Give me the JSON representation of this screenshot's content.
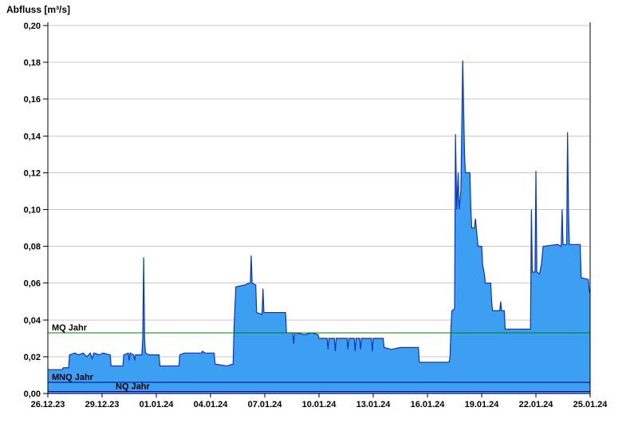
{
  "chart_data": {
    "type": "area",
    "title": "Abfluss [m³/s]",
    "ylabel": "Abfluss [m³/s]",
    "xlabel": "",
    "x_axis_start_date": "26.12.23",
    "xlim": [
      0,
      30
    ],
    "ylim": [
      0,
      0.202
    ],
    "grid": "horizontal",
    "legend": "none",
    "x_tick_days": [
      0,
      3,
      6,
      9,
      12,
      15,
      18,
      21,
      24,
      27,
      30
    ],
    "x_tick_labels": [
      "26.12.23",
      "29.12.23",
      "01.01.24",
      "04.01.24",
      "07.01.24",
      "10.01.24",
      "13.01.24",
      "16.01.24",
      "19.01.24",
      "22.01.24",
      "25.01.24"
    ],
    "y_ticks": [
      0,
      0.02,
      0.04,
      0.06,
      0.08,
      0.1,
      0.12,
      0.14,
      0.16,
      0.18,
      0.2
    ],
    "y_tick_labels": [
      "0,00",
      "0,02",
      "0,04",
      "0,06",
      "0,08",
      "0,10",
      "0,12",
      "0,14",
      "0,16",
      "0,18",
      "0,20"
    ],
    "reference_lines": [
      {
        "label": "MQ Jahr",
        "value": 0.033,
        "color": "#008000"
      },
      {
        "label": "MNQ Jahr",
        "value": 0.006,
        "color": "#000080"
      },
      {
        "label": "NQ Jahr",
        "value": 0.001,
        "color": "#000080"
      }
    ],
    "series": [
      {
        "name": "Abfluss",
        "unit": "m³/s",
        "points": [
          [
            0,
            0.013
          ],
          [
            0.8,
            0.013
          ],
          [
            0.85,
            0.014
          ],
          [
            1.15,
            0.014
          ],
          [
            1.2,
            0.021
          ],
          [
            1.5,
            0.022
          ],
          [
            1.7,
            0.021
          ],
          [
            1.95,
            0.022
          ],
          [
            2.15,
            0.02
          ],
          [
            2.35,
            0.022
          ],
          [
            2.45,
            0.019
          ],
          [
            2.55,
            0.022
          ],
          [
            2.85,
            0.021
          ],
          [
            3.05,
            0.022
          ],
          [
            3.45,
            0.021
          ],
          [
            3.5,
            0.015
          ],
          [
            4.15,
            0.015
          ],
          [
            4.2,
            0.021
          ],
          [
            4.45,
            0.022
          ],
          [
            4.5,
            0.018
          ],
          [
            4.55,
            0.022
          ],
          [
            4.75,
            0.021
          ],
          [
            4.8,
            0.018
          ],
          [
            4.85,
            0.021
          ],
          [
            5.2,
            0.021
          ],
          [
            5.25,
            0.03
          ],
          [
            5.3,
            0.074
          ],
          [
            5.35,
            0.03
          ],
          [
            5.4,
            0.022
          ],
          [
            5.6,
            0.021
          ],
          [
            6.15,
            0.021
          ],
          [
            6.2,
            0.015
          ],
          [
            7.25,
            0.015
          ],
          [
            7.3,
            0.021
          ],
          [
            7.55,
            0.022
          ],
          [
            8.5,
            0.022
          ],
          [
            8.55,
            0.023
          ],
          [
            8.7,
            0.022
          ],
          [
            9.2,
            0.022
          ],
          [
            9.25,
            0.016
          ],
          [
            9.9,
            0.015
          ],
          [
            10.25,
            0.016
          ],
          [
            10.3,
            0.036
          ],
          [
            10.4,
            0.058
          ],
          [
            10.9,
            0.059
          ],
          [
            11.1,
            0.06
          ],
          [
            11.2,
            0.06
          ],
          [
            11.25,
            0.075
          ],
          [
            11.3,
            0.06
          ],
          [
            11.5,
            0.059
          ],
          [
            11.55,
            0.044
          ],
          [
            11.85,
            0.043
          ],
          [
            11.9,
            0.057
          ],
          [
            11.95,
            0.044
          ],
          [
            13.15,
            0.044
          ],
          [
            13.2,
            0.033
          ],
          [
            13.55,
            0.033
          ],
          [
            13.6,
            0.027
          ],
          [
            13.65,
            0.033
          ],
          [
            14.2,
            0.032
          ],
          [
            14.6,
            0.033
          ],
          [
            14.95,
            0.032
          ],
          [
            15.0,
            0.03
          ],
          [
            15.45,
            0.03
          ],
          [
            15.5,
            0.024
          ],
          [
            15.55,
            0.03
          ],
          [
            15.85,
            0.03
          ],
          [
            15.9,
            0.023
          ],
          [
            15.95,
            0.03
          ],
          [
            16.55,
            0.03
          ],
          [
            16.6,
            0.024
          ],
          [
            16.65,
            0.03
          ],
          [
            16.95,
            0.03
          ],
          [
            17.0,
            0.023
          ],
          [
            17.05,
            0.03
          ],
          [
            17.25,
            0.03
          ],
          [
            17.3,
            0.024
          ],
          [
            17.35,
            0.03
          ],
          [
            17.9,
            0.03
          ],
          [
            17.95,
            0.023
          ],
          [
            18.0,
            0.03
          ],
          [
            18.55,
            0.03
          ],
          [
            18.6,
            0.025
          ],
          [
            19.0,
            0.024
          ],
          [
            19.5,
            0.025
          ],
          [
            20.5,
            0.025
          ],
          [
            20.55,
            0.017
          ],
          [
            22.2,
            0.017
          ],
          [
            22.25,
            0.02
          ],
          [
            22.3,
            0.036
          ],
          [
            22.35,
            0.045
          ],
          [
            22.5,
            0.046
          ],
          [
            22.55,
            0.141
          ],
          [
            22.62,
            0.1
          ],
          [
            22.7,
            0.12
          ],
          [
            22.75,
            0.1
          ],
          [
            22.85,
            0.11
          ],
          [
            22.95,
            0.181
          ],
          [
            23.05,
            0.13
          ],
          [
            23.1,
            0.12
          ],
          [
            23.35,
            0.12
          ],
          [
            23.4,
            0.1
          ],
          [
            23.45,
            0.09
          ],
          [
            23.6,
            0.09
          ],
          [
            23.65,
            0.095
          ],
          [
            23.7,
            0.09
          ],
          [
            23.8,
            0.08
          ],
          [
            24.0,
            0.08
          ],
          [
            24.05,
            0.07
          ],
          [
            24.15,
            0.065
          ],
          [
            24.2,
            0.06
          ],
          [
            24.5,
            0.06
          ],
          [
            24.55,
            0.05
          ],
          [
            24.6,
            0.045
          ],
          [
            25.0,
            0.045
          ],
          [
            25.05,
            0.05
          ],
          [
            25.1,
            0.045
          ],
          [
            25.25,
            0.045
          ],
          [
            25.3,
            0.035
          ],
          [
            26.7,
            0.035
          ],
          [
            26.75,
            0.1
          ],
          [
            26.8,
            0.066
          ],
          [
            26.95,
            0.066
          ],
          [
            27.0,
            0.121
          ],
          [
            27.05,
            0.066
          ],
          [
            27.2,
            0.065
          ],
          [
            27.3,
            0.07
          ],
          [
            27.4,
            0.08
          ],
          [
            28.2,
            0.081
          ],
          [
            28.4,
            0.08
          ],
          [
            28.45,
            0.1
          ],
          [
            28.5,
            0.081
          ],
          [
            28.7,
            0.081
          ],
          [
            28.75,
            0.142
          ],
          [
            28.8,
            0.1
          ],
          [
            28.85,
            0.081
          ],
          [
            29.45,
            0.081
          ],
          [
            29.5,
            0.063
          ],
          [
            29.9,
            0.062
          ],
          [
            29.95,
            0.056
          ],
          [
            30,
            0.054
          ]
        ]
      }
    ],
    "colors": {
      "area_fill": "#3d9ff2",
      "area_stroke": "#0a35b8",
      "grid": "#c8c8c8",
      "axis": "#000000",
      "text": "#000000",
      "background": "#ffffff"
    }
  }
}
